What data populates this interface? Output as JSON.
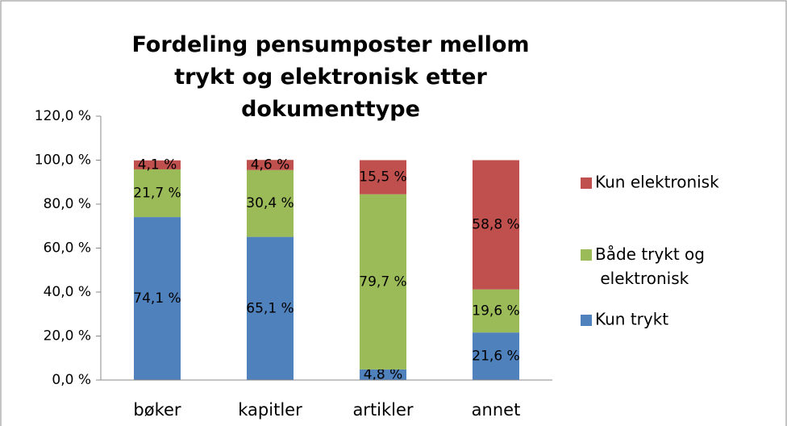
{
  "chart_data": {
    "type": "stacked_bar",
    "title": "Fordeling pensumposter mellom trykt og elektronisk etter dokumenttype",
    "categories": [
      "bøker",
      "kapitler",
      "artikler",
      "annet"
    ],
    "series": [
      {
        "name": "Kun trykt",
        "color": "#4f81bd",
        "values": [
          74.1,
          65.1,
          4.8,
          21.6
        ],
        "value_labels": [
          "74,1 %",
          "65,1 %",
          "4,8 %",
          "21,6 %"
        ]
      },
      {
        "name": "Både trykt og elektronisk",
        "color": "#9bbb59",
        "values": [
          21.7,
          30.4,
          79.7,
          19.6
        ],
        "value_labels": [
          "21,7 %",
          "30,4 %",
          "79,7 %",
          "19,6 %"
        ]
      },
      {
        "name": "Kun elektronisk",
        "color": "#c0504d",
        "values": [
          4.1,
          4.6,
          15.5,
          58.8
        ],
        "value_labels": [
          "4,1 %",
          "4,6 %",
          "15,5 %",
          "58,8 %"
        ]
      }
    ],
    "ylim": [
      0,
      120
    ],
    "yticks": [
      {
        "value": 0,
        "label": "0,0 %"
      },
      {
        "value": 20,
        "label": "20,0 %"
      },
      {
        "value": 40,
        "label": "40,0 %"
      },
      {
        "value": 60,
        "label": "60,0 %"
      },
      {
        "value": 80,
        "label": "80,0 %"
      },
      {
        "value": 100,
        "label": "100,0 %"
      },
      {
        "value": 120,
        "label": "120,0 %"
      }
    ],
    "grid": false,
    "legend": "right"
  }
}
